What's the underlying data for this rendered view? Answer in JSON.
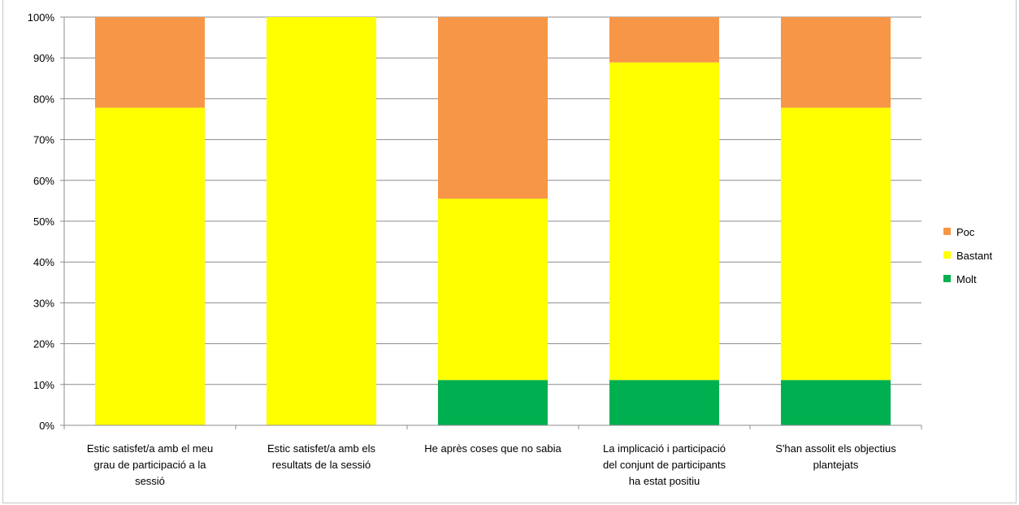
{
  "chart_data": {
    "type": "bar",
    "stacked": true,
    "percent_stacked": true,
    "categories": [
      [
        "Estic satisfet/a  amb el meu",
        "grau de participació a la",
        "sessió"
      ],
      [
        "Estic satisfet/a  amb els",
        "resultats de la sessió"
      ],
      [
        "He après coses que no sabia"
      ],
      [
        "La implicació  i participació",
        "del conjunt de participants",
        "ha estat  positiu"
      ],
      [
        "S'han assolit els objectius",
        "plantejats"
      ]
    ],
    "series": [
      {
        "name": "Molt",
        "color": "#00b050",
        "values": [
          0,
          0,
          11.1,
          11.1,
          11.1
        ]
      },
      {
        "name": "Bastant",
        "color": "#ffff00",
        "values": [
          77.8,
          100,
          44.4,
          77.8,
          66.7
        ]
      },
      {
        "name": "Poc",
        "color": "#f79646",
        "values": [
          22.2,
          0,
          44.5,
          11.1,
          22.2
        ]
      }
    ],
    "ylim": [
      0,
      100
    ],
    "yticks": [
      "0%",
      "10%",
      "20%",
      "30%",
      "40%",
      "50%",
      "60%",
      "70%",
      "80%",
      "90%",
      "100%"
    ],
    "grid": true,
    "legend": {
      "position": "right",
      "order": [
        "Poc",
        "Bastant",
        "Molt"
      ]
    }
  }
}
